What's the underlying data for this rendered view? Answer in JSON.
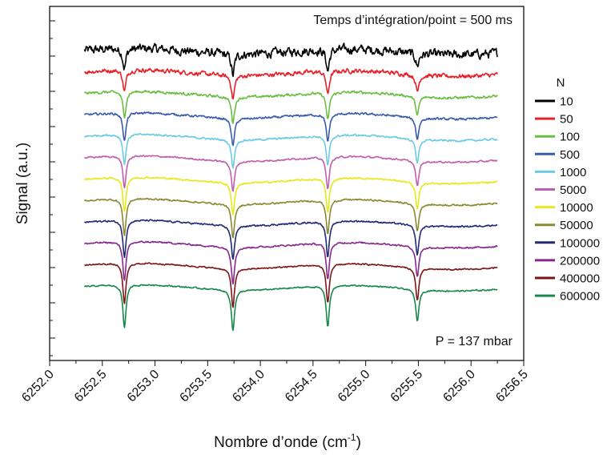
{
  "chart_data": {
    "type": "line",
    "title": "",
    "annotation_top": "Temps d’intégration/point = 500 ms",
    "annotation_bottom": "P = 137 mbar",
    "xlabel": "Nombre d’onde (cm",
    "xlabel_sup": "-1",
    "xlabel_close": ")",
    "ylabel": "Signal (a.u.)",
    "xlim": [
      6252.0,
      6256.5
    ],
    "x_ticks": [
      "6252.0",
      "6252.5",
      "6253.0",
      "6253.5",
      "6254.0",
      "6254.5",
      "6255.0",
      "6255.5",
      "6256.0",
      "6256.5"
    ],
    "x_range_data": [
      6252.33,
      6256.25
    ],
    "absorption_lines": [
      6252.71,
      6253.74,
      6254.64,
      6255.49
    ],
    "grid": false,
    "legend": {
      "title": "N",
      "position": "right"
    },
    "series": [
      {
        "name": "10",
        "color": "#000000",
        "offset": 11.0,
        "noise": 0.33,
        "depth": [
          0.9,
          1.0,
          1.0,
          0.6
        ]
      },
      {
        "name": "50",
        "color": "#e8202a",
        "offset": 10.0,
        "noise": 0.16,
        "depth": [
          1.0,
          1.1,
          1.1,
          0.8
        ]
      },
      {
        "name": "100",
        "color": "#6dbd45",
        "offset": 9.0,
        "noise": 0.1,
        "depth": [
          1.2,
          1.2,
          1.3,
          0.9
        ]
      },
      {
        "name": "500",
        "color": "#3a5bab",
        "offset": 8.0,
        "noise": 0.08,
        "depth": [
          1.3,
          1.3,
          1.3,
          1.0
        ]
      },
      {
        "name": "1000",
        "color": "#6ccbe2",
        "offset": 7.0,
        "noise": 0.07,
        "depth": [
          1.4,
          1.3,
          1.4,
          1.1
        ]
      },
      {
        "name": "5000",
        "color": "#c05fb0",
        "offset": 6.0,
        "noise": 0.06,
        "depth": [
          1.5,
          1.4,
          1.5,
          1.2
        ]
      },
      {
        "name": "10000",
        "color": "#e8e81a",
        "offset": 5.0,
        "noise": 0.06,
        "depth": [
          1.6,
          1.5,
          1.6,
          1.3
        ]
      },
      {
        "name": "50000",
        "color": "#8a8a35",
        "offset": 4.0,
        "noise": 0.06,
        "depth": [
          1.7,
          1.6,
          1.6,
          1.3
        ]
      },
      {
        "name": "100000",
        "color": "#222a72",
        "offset": 3.0,
        "noise": 0.06,
        "depth": [
          1.7,
          1.6,
          1.7,
          1.4
        ]
      },
      {
        "name": "200000",
        "color": "#87288d",
        "offset": 2.0,
        "noise": 0.06,
        "depth": [
          1.8,
          1.7,
          1.7,
          1.4
        ]
      },
      {
        "name": "400000",
        "color": "#7d1517",
        "offset": 1.0,
        "noise": 0.05,
        "depth": [
          1.9,
          1.8,
          1.8,
          1.5
        ]
      },
      {
        "name": "600000",
        "color": "#16894a",
        "offset": 0.0,
        "noise": 0.05,
        "depth": [
          2.0,
          1.9,
          1.9,
          1.5
        ]
      }
    ]
  }
}
